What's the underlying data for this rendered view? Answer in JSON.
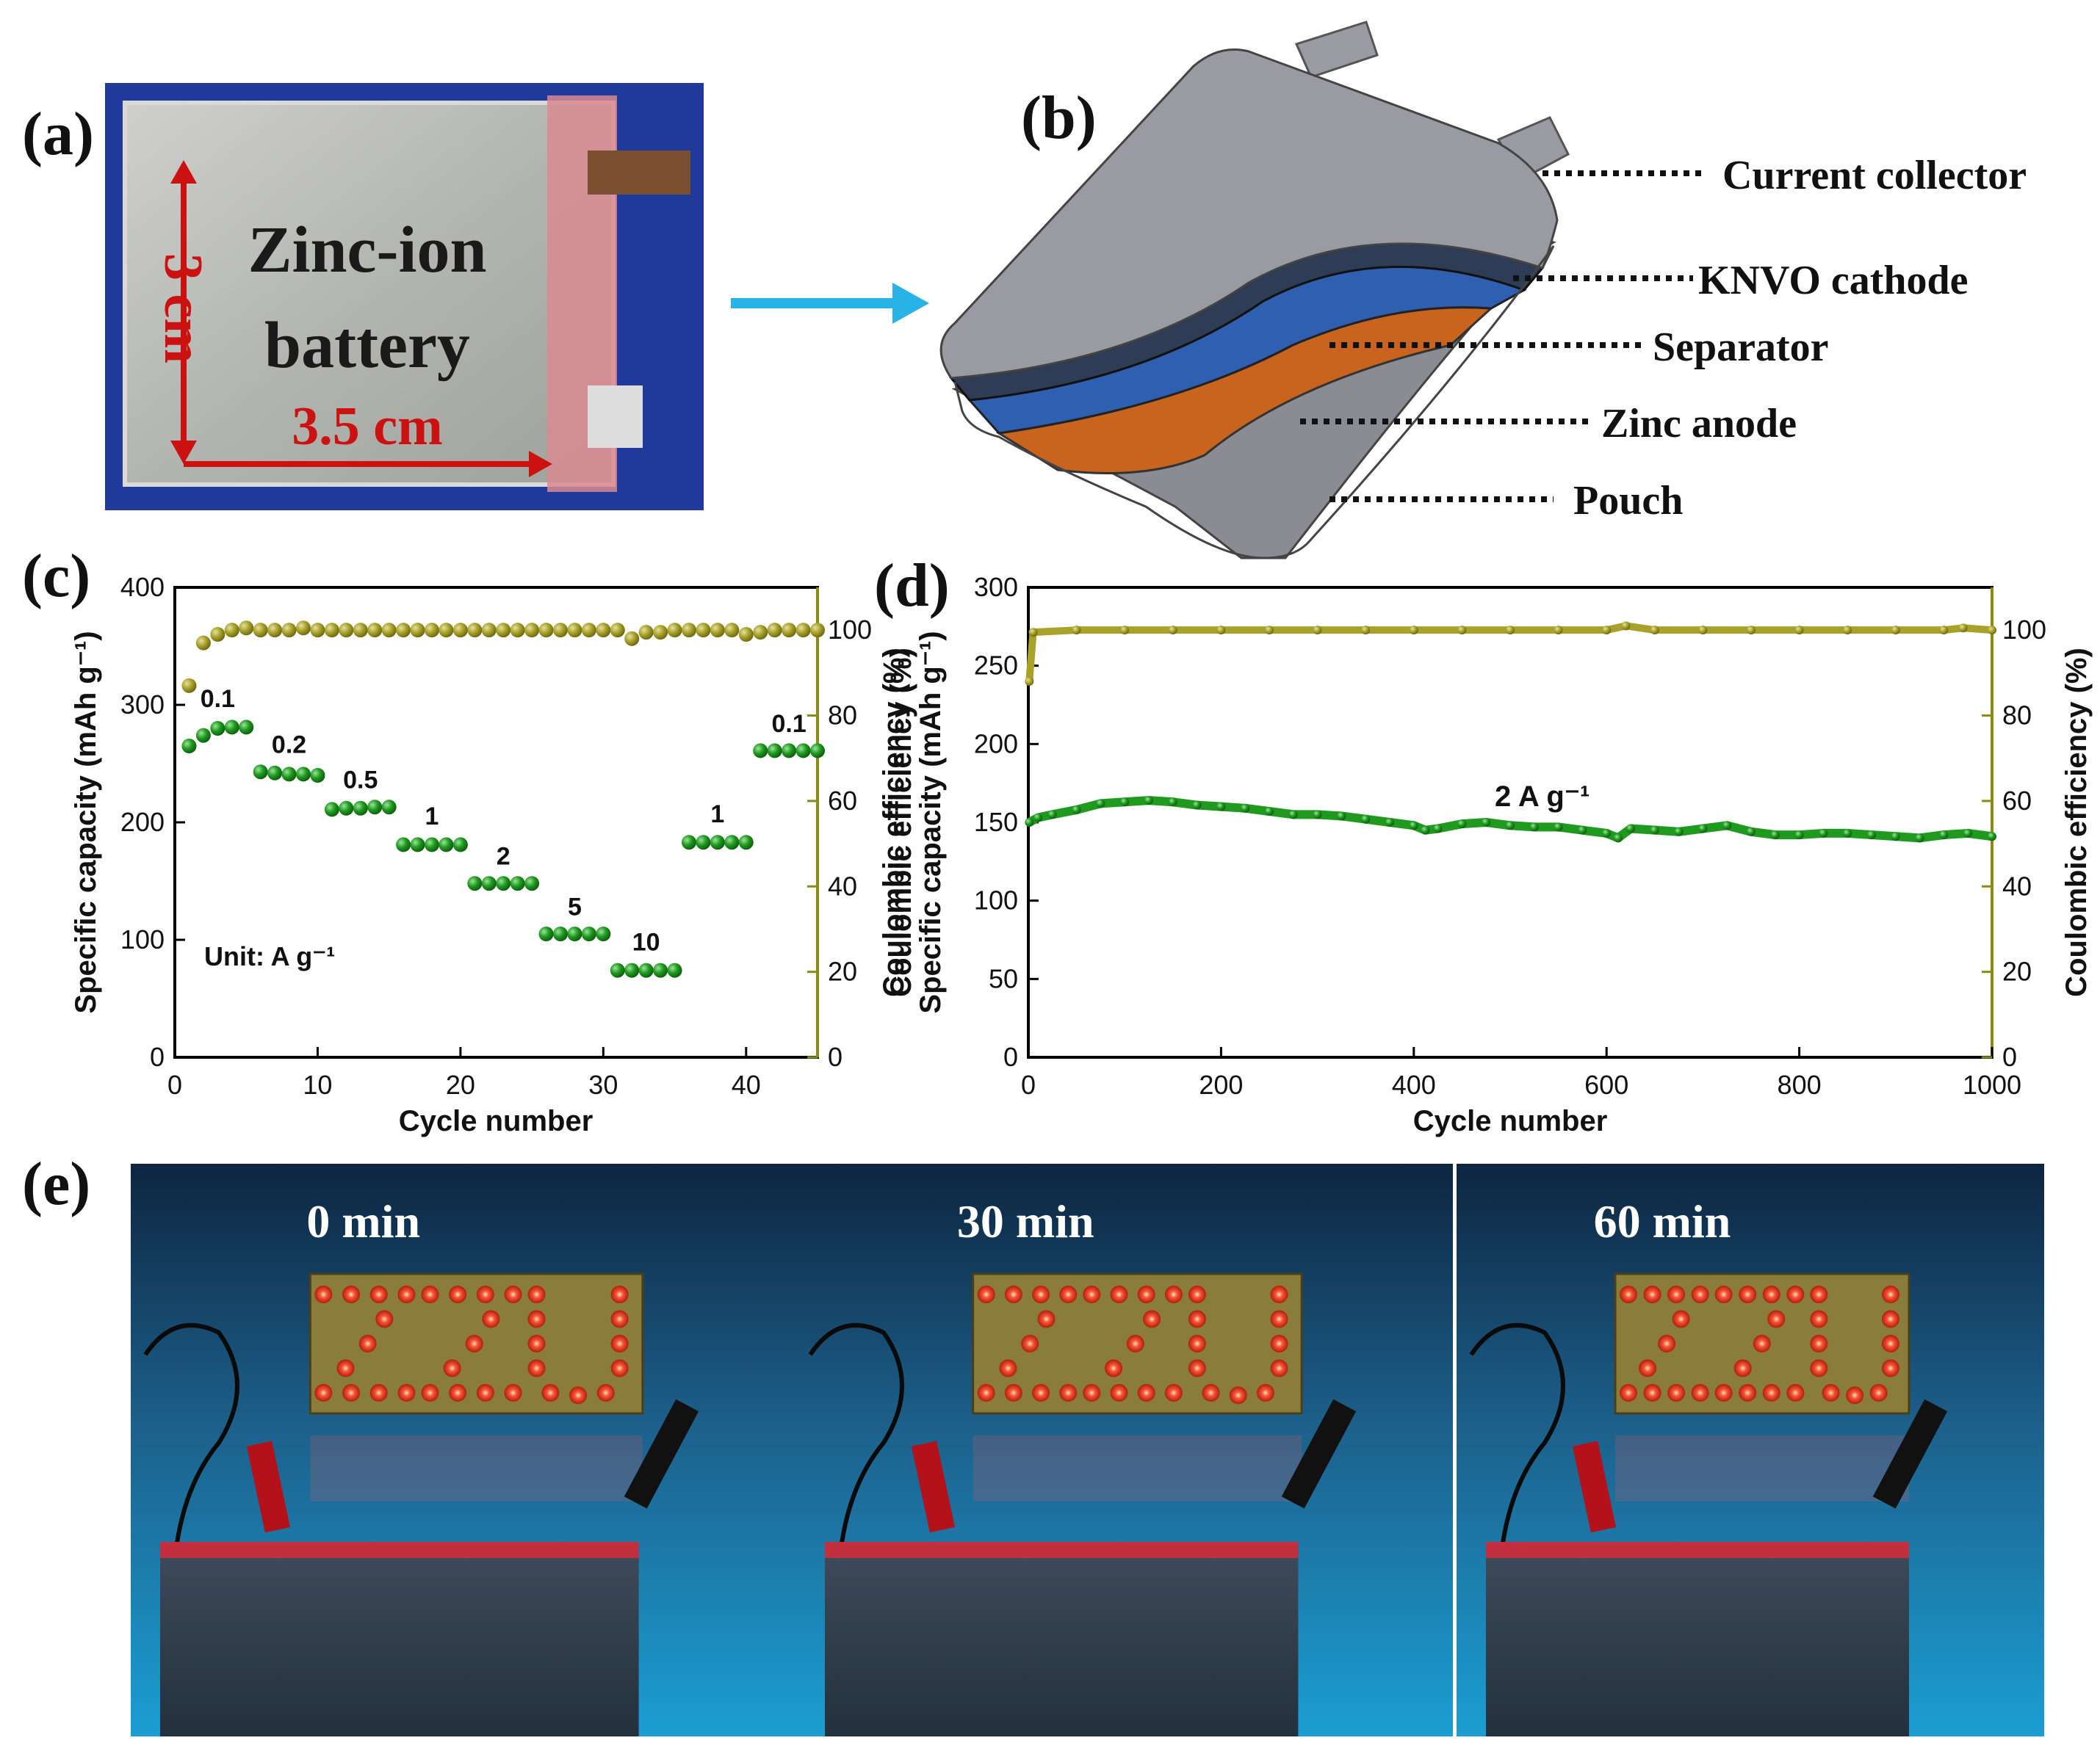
{
  "panel_labels": {
    "a": "(a)",
    "b": "(b)",
    "c": "(c)",
    "d": "(d)",
    "e": "(e)"
  },
  "panel_a": {
    "title_line1": "Zinc-ion",
    "title_line2": "battery",
    "height_label": "3 cm",
    "width_label": "3.5 cm"
  },
  "panel_b": {
    "labels": {
      "current_collector": "Current collector",
      "cathode": "KNVO cathode",
      "separator": "Separator",
      "anode": "Zinc anode",
      "pouch": "Pouch"
    }
  },
  "colors": {
    "capacity": "#1f9a1f",
    "efficiency": "#a8a22a",
    "axis_right": "#8c8a12",
    "arrow": "#27b3e6",
    "label_red": "#cc1111",
    "cathode_dark": "#2e3d55",
    "cathode_blue": "#2f5fb0",
    "separator_orange": "#c8641e",
    "pouch_gray": "#9a9aa3"
  },
  "chart_data": [
    {
      "id": "c",
      "type": "scatter",
      "xlabel": "Cycle number",
      "ylabel": "Specific capacity (mAh g⁻¹)",
      "y2label": "Coulombic efficiency (%)",
      "xlim": [
        0,
        45
      ],
      "xticks": [
        0,
        10,
        20,
        30,
        40
      ],
      "ylim": [
        0,
        400
      ],
      "yticks": [
        0,
        100,
        200,
        300,
        400
      ],
      "y2lim": [
        0,
        110
      ],
      "y2ticks": [
        0,
        20,
        40,
        60,
        80,
        100
      ],
      "unit_note": "Unit: A g⁻¹",
      "series": [
        {
          "name": "Specific capacity",
          "axis": "left",
          "x": [
            1,
            2,
            3,
            4,
            5,
            6,
            7,
            8,
            9,
            10,
            11,
            12,
            13,
            14,
            15,
            16,
            17,
            18,
            19,
            20,
            21,
            22,
            23,
            24,
            25,
            26,
            27,
            28,
            29,
            30,
            31,
            32,
            33,
            34,
            35,
            36,
            37,
            38,
            39,
            40,
            41,
            42,
            43,
            44,
            45
          ],
          "y": [
            265,
            274,
            280,
            281,
            281,
            243,
            242,
            241,
            241,
            240,
            211,
            212,
            212,
            213,
            213,
            181,
            181,
            181,
            181,
            181,
            148,
            148,
            148,
            148,
            148,
            105,
            105,
            105,
            105,
            105,
            74,
            74,
            74,
            74,
            74,
            183,
            183,
            183,
            183,
            183,
            261,
            261,
            261,
            261,
            261
          ]
        },
        {
          "name": "Coulombic efficiency",
          "axis": "right",
          "x": [
            1,
            2,
            3,
            4,
            5,
            6,
            7,
            8,
            9,
            10,
            11,
            12,
            13,
            14,
            15,
            16,
            17,
            18,
            19,
            20,
            21,
            22,
            23,
            24,
            25,
            26,
            27,
            28,
            29,
            30,
            31,
            32,
            33,
            34,
            35,
            36,
            37,
            38,
            39,
            40,
            41,
            42,
            43,
            44,
            45
          ],
          "y": [
            87,
            97,
            99,
            100,
            100.5,
            100,
            100,
            100,
            100.5,
            100,
            100,
            100,
            100,
            100,
            100,
            100,
            100,
            100,
            100,
            100,
            100,
            100,
            100,
            100,
            100,
            100,
            100,
            100,
            100,
            100,
            100,
            98,
            99.5,
            99.5,
            100,
            100,
            100,
            100,
            100,
            99,
            99.5,
            100,
            100,
            100,
            100
          ]
        }
      ],
      "annotations": [
        {
          "text": "0.1",
          "x": 3,
          "y": 298
        },
        {
          "text": "0.2",
          "x": 8,
          "y": 259
        },
        {
          "text": "0.5",
          "x": 13,
          "y": 229
        },
        {
          "text": "1",
          "x": 18,
          "y": 198
        },
        {
          "text": "2",
          "x": 23,
          "y": 164
        },
        {
          "text": "5",
          "x": 28,
          "y": 121
        },
        {
          "text": "10",
          "x": 33,
          "y": 91
        },
        {
          "text": "1",
          "x": 38,
          "y": 200
        },
        {
          "text": "0.1",
          "x": 43,
          "y": 277
        }
      ]
    },
    {
      "id": "d",
      "type": "scatter",
      "xlabel": "Cycle number",
      "ylabel": "Specific capacity (mAh g⁻¹)",
      "ylabel2": "Coulombic efficiency (%)",
      "y2label": "Coulombic efficiency (%)",
      "xlim": [
        0,
        1000
      ],
      "xticks": [
        0,
        200,
        400,
        600,
        800,
        1000
      ],
      "ylim": [
        0,
        300
      ],
      "yticks": [
        0,
        50,
        100,
        150,
        200,
        250,
        300
      ],
      "y2lim": [
        0,
        110
      ],
      "y2ticks": [
        0,
        20,
        40,
        60,
        80,
        100
      ],
      "annotation": "2 A g⁻¹",
      "series": [
        {
          "name": "Specific capacity",
          "axis": "left",
          "x": [
            1,
            10,
            25,
            50,
            75,
            100,
            125,
            150,
            175,
            200,
            225,
            250,
            275,
            300,
            325,
            350,
            375,
            400,
            412,
            425,
            450,
            475,
            500,
            525,
            550,
            575,
            600,
            612,
            625,
            650,
            675,
            700,
            725,
            750,
            775,
            800,
            825,
            850,
            875,
            900,
            925,
            950,
            975,
            1000
          ],
          "y": [
            150,
            153,
            155,
            158,
            162,
            163,
            164,
            163,
            161,
            160,
            159,
            157,
            155,
            155,
            154,
            152,
            150,
            148,
            145,
            146,
            149,
            150,
            148,
            147,
            147,
            145,
            143,
            140,
            146,
            145,
            144,
            146,
            148,
            144,
            142,
            142,
            143,
            143,
            142,
            141,
            140,
            142,
            143,
            141
          ]
        },
        {
          "name": "Coulombic efficiency",
          "axis": "right",
          "x": [
            1,
            5,
            50,
            100,
            150,
            200,
            250,
            300,
            350,
            400,
            450,
            500,
            550,
            600,
            620,
            650,
            700,
            750,
            800,
            850,
            900,
            950,
            970,
            1000
          ],
          "y": [
            88,
            99.5,
            100,
            100,
            100,
            100,
            100,
            100,
            100,
            100,
            100,
            100,
            100,
            100,
            101,
            100,
            100,
            100,
            100,
            100,
            100,
            100,
            100.5,
            100
          ]
        }
      ]
    }
  ],
  "panel_e": {
    "photos": [
      {
        "time_label": "0 min",
        "sign_text": "ZZU"
      },
      {
        "time_label": "30 min",
        "sign_text": "ZZU"
      },
      {
        "time_label": "60 min",
        "sign_text": "ZZU"
      }
    ]
  }
}
